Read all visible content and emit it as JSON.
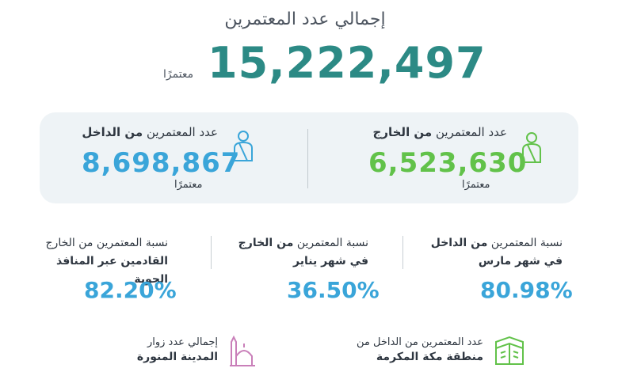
{
  "total": {
    "title": "إجمالي عدد المعتمرين",
    "value": "15,222,497",
    "unit": "معتمرًا"
  },
  "abroad": {
    "label_prefix": "عدد المعتمرين",
    "label_bold": "من الخارج",
    "value": "6,523,630",
    "unit": "معتمرًا",
    "icon": "pilgrim-icon",
    "color": "#62c24a"
  },
  "domestic": {
    "label_prefix": "عدد المعتمرين",
    "label_bold": "من الداخل",
    "value": "8,698,867",
    "unit": "معتمرًا",
    "icon": "pilgrim-icon",
    "color": "#3aa5d9"
  },
  "stats": [
    {
      "line1_prefix": "نسبة المعتمرين",
      "line1_bold": "من الداخل",
      "line2": "في شهر مارس",
      "value": "80.98%"
    },
    {
      "line1_prefix": "نسبة المعتمرين",
      "line1_bold": "من الخارج",
      "line2": "في شهر يناير",
      "value": "36.50%"
    },
    {
      "line1_prefix": "نسبة المعتمرين من الخارج",
      "line1_bold": "",
      "line2": "القادمين عبر المنافذ الجوية",
      "value": "82.20%"
    }
  ],
  "footer": {
    "makkah": {
      "line1": "عدد المعتمرين من الداخل من",
      "line2": "منطقة مكة المكرمة",
      "icon": "kaaba-icon"
    },
    "madinah": {
      "line1": "إجمالي عدد زوار",
      "line2": "المدينة المنورة",
      "icon": "mosque-icon"
    }
  },
  "colors": {
    "teal": "#2c8a85",
    "green": "#62c24a",
    "blue": "#3aa5d9",
    "card_bg": "#eef3f6"
  }
}
